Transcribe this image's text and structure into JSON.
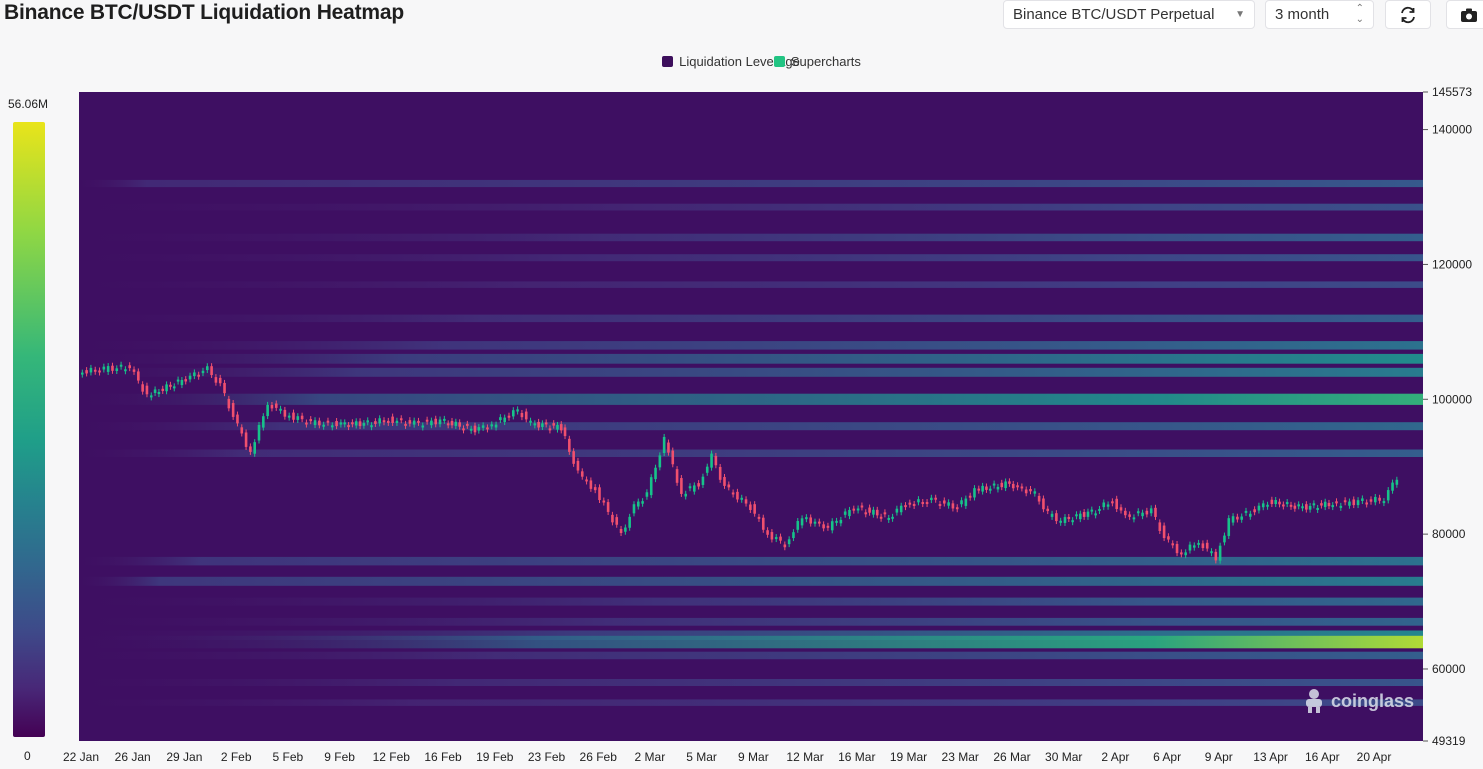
{
  "header": {
    "title": "Binance BTC/USDT Liquidation Heatmap",
    "pair_select": "Binance BTC/USDT Perpetual",
    "range_select": "3 month",
    "refresh_icon": "refresh-icon",
    "camera_icon": "camera-icon"
  },
  "legend": {
    "items": [
      {
        "label": "Liquidation Leverage",
        "color": "#3d0f5c"
      },
      {
        "label": "Supercharts",
        "color": "#22c483"
      }
    ]
  },
  "color_scale": {
    "max_label": "56.06M",
    "min_label": "0"
  },
  "watermark": "coinglass",
  "chart_data": {
    "type": "heatmap",
    "title": "Binance BTC/USDT Liquidation Heatmap",
    "xlabel": "",
    "ylabel": "",
    "x_tick_labels": [
      "22 Jan",
      "26 Jan",
      "29 Jan",
      "2 Feb",
      "5 Feb",
      "9 Feb",
      "12 Feb",
      "16 Feb",
      "19 Feb",
      "23 Feb",
      "26 Feb",
      "2 Mar",
      "5 Mar",
      "9 Mar",
      "12 Mar",
      "16 Mar",
      "19 Mar",
      "23 Mar",
      "26 Mar",
      "30 Mar",
      "2 Apr",
      "6 Apr",
      "9 Apr",
      "13 Apr",
      "16 Apr",
      "20 Apr"
    ],
    "y_tick_labels": [
      "145573",
      "140000",
      "120000",
      "100000",
      "80000",
      "60000",
      "49319"
    ],
    "ylim": [
      49319,
      145573
    ],
    "colorbar_range": [
      0,
      56060000
    ],
    "price_series": {
      "name": "BTC/USDT",
      "points": [
        [
          "22 Jan",
          104000
        ],
        [
          "24 Jan",
          104500
        ],
        [
          "26 Jan",
          104800
        ],
        [
          "27 Jan",
          100500
        ],
        [
          "29 Jan",
          102800
        ],
        [
          "31 Jan",
          104500
        ],
        [
          "1 Feb",
          102000
        ],
        [
          "2 Feb",
          97500
        ],
        [
          "3 Feb",
          92000
        ],
        [
          "4 Feb",
          99500
        ],
        [
          "5 Feb",
          97800
        ],
        [
          "7 Feb",
          96500
        ],
        [
          "9 Feb",
          96300
        ],
        [
          "11 Feb",
          96500
        ],
        [
          "12 Feb",
          97000
        ],
        [
          "14 Feb",
          96400
        ],
        [
          "16 Feb",
          96800
        ],
        [
          "18 Feb",
          95500
        ],
        [
          "19 Feb",
          96200
        ],
        [
          "21 Feb",
          98400
        ],
        [
          "22 Feb",
          96400
        ],
        [
          "24 Feb",
          95800
        ],
        [
          "25 Feb",
          89000
        ],
        [
          "26 Feb",
          86500
        ],
        [
          "28 Feb",
          80000
        ],
        [
          "1 Mar",
          84000
        ],
        [
          "2 Mar",
          86000
        ],
        [
          "3 Mar",
          94000
        ],
        [
          "4 Mar",
          86000
        ],
        [
          "5 Mar",
          87500
        ],
        [
          "6 Mar",
          91500
        ],
        [
          "7 Mar",
          87000
        ],
        [
          "9 Mar",
          84000
        ],
        [
          "10 Mar",
          80000
        ],
        [
          "11 Mar",
          78500
        ],
        [
          "12 Mar",
          82500
        ],
        [
          "14 Mar",
          81000
        ],
        [
          "16 Mar",
          84000
        ],
        [
          "18 Mar",
          82500
        ],
        [
          "19 Mar",
          84500
        ],
        [
          "21 Mar",
          85000
        ],
        [
          "23 Mar",
          84000
        ],
        [
          "24 Mar",
          86500
        ],
        [
          "26 Mar",
          87500
        ],
        [
          "28 Mar",
          86000
        ],
        [
          "29 Mar",
          83000
        ],
        [
          "30 Mar",
          82000
        ],
        [
          "1 Apr",
          83500
        ],
        [
          "2 Apr",
          85000
        ],
        [
          "3 Apr",
          82500
        ],
        [
          "5 Apr",
          83500
        ],
        [
          "6 Apr",
          79500
        ],
        [
          "7 Apr",
          77000
        ],
        [
          "8 Apr",
          79000
        ],
        [
          "9 Apr",
          76500
        ],
        [
          "10 Apr",
          82000
        ],
        [
          "12 Apr",
          83500
        ],
        [
          "13 Apr",
          84800
        ],
        [
          "15 Apr",
          84000
        ],
        [
          "17 Apr",
          84500
        ],
        [
          "19 Apr",
          84800
        ],
        [
          "21 Apr",
          85200
        ],
        [
          "22 Apr",
          88500
        ]
      ]
    },
    "liquidation_bands": [
      {
        "y": 132000,
        "level": 0.42
      },
      {
        "y": 128500,
        "level": 0.38
      },
      {
        "y": 124000,
        "level": 0.45
      },
      {
        "y": 121000,
        "level": 0.4
      },
      {
        "y": 117000,
        "level": 0.35
      },
      {
        "y": 112000,
        "level": 0.45
      },
      {
        "y": 108000,
        "level": 0.55
      },
      {
        "y": 106000,
        "level": 0.68
      },
      {
        "y": 104000,
        "level": 0.6
      },
      {
        "y": 100000,
        "level": 0.82
      },
      {
        "y": 96000,
        "level": 0.5
      },
      {
        "y": 92000,
        "level": 0.45
      },
      {
        "y": 76000,
        "level": 0.55
      },
      {
        "y": 73000,
        "level": 0.6
      },
      {
        "y": 70000,
        "level": 0.5
      },
      {
        "y": 67000,
        "level": 0.48
      },
      {
        "y": 65000,
        "level": 0.65
      },
      {
        "y": 64000,
        "level": 0.95
      },
      {
        "y": 62000,
        "level": 0.45
      },
      {
        "y": 58000,
        "level": 0.4
      },
      {
        "y": 55000,
        "level": 0.35
      }
    ]
  }
}
